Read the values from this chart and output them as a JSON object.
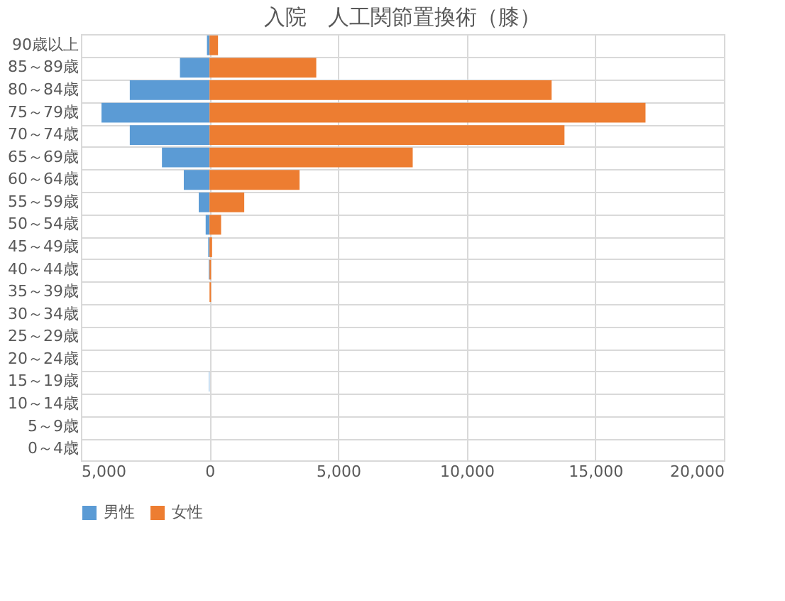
{
  "chart_data": {
    "type": "bar",
    "orientation": "horizontal",
    "title": "入院　人工関節置換術（膝）",
    "categories": [
      "90歳以上",
      "85～89歳",
      "80～84歳",
      "75～79歳",
      "70～74歳",
      "65～69歳",
      "60～64歳",
      "55～59歳",
      "50～54歳",
      "45～49歳",
      "40～44歳",
      "35～39歳",
      "30～34歳",
      "25～29歳",
      "20～24歳",
      "15～19歳",
      "10～14歳",
      "5～9歳",
      "0～4歳"
    ],
    "series": [
      {
        "name": "男性",
        "color": "#5b9bd5",
        "values": [
          -100,
          -1150,
          -3100,
          -4200,
          -3100,
          -1850,
          -1000,
          -420,
          -150,
          -50,
          -30,
          0,
          0,
          0,
          0,
          -20,
          0,
          0,
          0
        ]
      },
      {
        "name": "女性",
        "color": "#ed7d31",
        "values": [
          330,
          4150,
          13300,
          16950,
          13800,
          7900,
          3500,
          1350,
          450,
          100,
          60,
          60,
          0,
          0,
          0,
          0,
          0,
          0,
          0
        ]
      }
    ],
    "xlim": [
      -5000,
      20000
    ],
    "xticks": [
      {
        "value": -5000,
        "label": "5,000"
      },
      0,
      {
        "value": 5000,
        "label": "5,000"
      },
      {
        "value": 10000,
        "label": "10,000"
      },
      {
        "value": 15000,
        "label": "15,000"
      },
      {
        "value": 20000,
        "label": "20,000"
      }
    ],
    "grid": true,
    "legend": "bottom"
  }
}
